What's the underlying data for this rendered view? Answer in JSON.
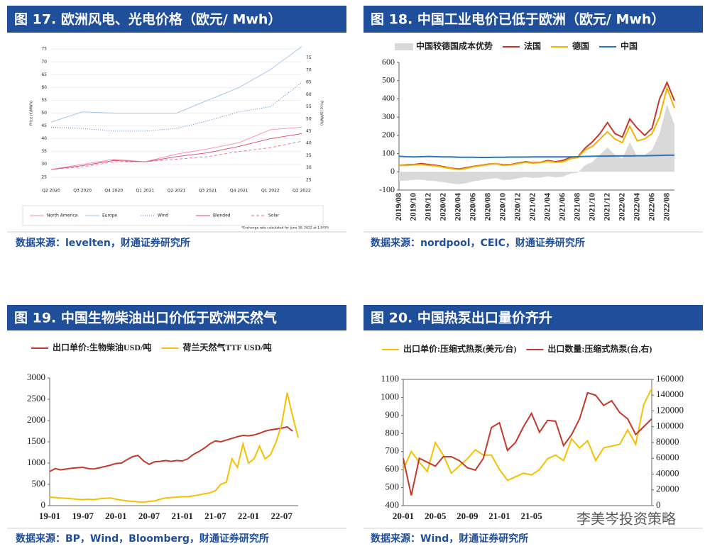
{
  "chart_data": [
    {
      "type": "line",
      "title": "图 17. 欧洲风电、光电价格（欧元/ Mwh）",
      "source": "数据来源：levelten，财通证券研究所",
      "y_label": "Price (€/MWh)",
      "y2_label": "Price ($/MWh)",
      "note": "*Exchange rate calculated for June 30, 2022 at 1.0476",
      "categories": [
        "Q2 2020",
        "Q3 2020",
        "Q4 2020",
        "Q1 2021",
        "Q2 2021",
        "Q3 2021",
        "Q4 2021",
        "Q1 2022",
        "Q2 2022"
      ],
      "ylim": [
        23,
        77
      ],
      "yticks": [
        25,
        30,
        35,
        40,
        45,
        50,
        55,
        60,
        65,
        70,
        75
      ],
      "y2lim": [
        24.1,
        80.7
      ],
      "y2ticks": [
        25,
        30,
        35,
        40,
        45,
        50,
        55,
        60,
        65,
        70,
        75
      ],
      "grid": true,
      "legend": "bottom",
      "series": [
        {
          "name": "North America",
          "color": "#ef8fb5",
          "values": [
            28,
            30,
            32,
            31,
            34,
            36,
            38.5,
            43.5,
            44.5
          ]
        },
        {
          "name": "Europe",
          "color": "#9dc3e6",
          "values": [
            46.5,
            50.5,
            50,
            50,
            50,
            55,
            60,
            67,
            76
          ]
        },
        {
          "name": "Wind",
          "color": "#4a7fc1",
          "dash": "1 2",
          "values": [
            44.5,
            44,
            43,
            43,
            44,
            47,
            50.5,
            52.5,
            62
          ]
        },
        {
          "name": "Blended",
          "color": "#d9465f",
          "values": [
            28,
            29.5,
            31.5,
            31,
            33,
            34.5,
            37,
            40,
            42
          ]
        },
        {
          "name": "Solar",
          "color": "#e0708f",
          "dash": "4 3",
          "values": [
            28,
            29,
            31,
            31,
            32,
            33,
            35,
            36.5,
            39
          ]
        }
      ]
    },
    {
      "type": "line",
      "title": "图 18. 中国工业电价已低于欧洲（欧元/ Mwh）",
      "source": "数据来源：nordpool，CEIC，财通证券研究所",
      "categories": [
        "2019/08",
        null,
        "2019/10",
        null,
        "2019/12",
        null,
        "2020/02",
        null,
        "2020/04",
        null,
        "2020/06",
        null,
        "2020/08",
        null,
        "2020/10",
        null,
        "2020/12",
        null,
        "2021/02",
        null,
        "2021/04",
        null,
        "2021/06",
        null,
        "2021/08",
        null,
        "2021/10",
        null,
        "2021/12",
        null,
        "2022/02",
        null,
        "2022/04",
        null,
        "2022/06",
        null,
        "2022/08",
        null
      ],
      "ylim": [
        -100,
        600
      ],
      "yticks": [
        -100,
        0,
        100,
        200,
        300,
        400,
        500,
        600
      ],
      "grid": false,
      "legend": "top",
      "series": [
        {
          "name": "中国较德国成本优势",
          "type": "area",
          "color": "#d9d9d9",
          "values": [
            -50,
            -48,
            -44,
            -43,
            -49,
            -51,
            -57,
            -64,
            -68,
            -62,
            -52,
            -46,
            -39,
            -35,
            -45,
            -43,
            -36,
            -29,
            -34,
            -32,
            -24,
            -30,
            -27,
            -10,
            -5,
            36,
            55,
            94,
            134,
            93,
            73,
            163,
            82,
            92,
            121,
            210,
            369,
            259
          ]
        },
        {
          "name": "法国",
          "color": "#c0392b",
          "values": [
            35,
            38,
            40,
            45,
            40,
            35,
            28,
            20,
            15,
            22,
            30,
            35,
            42,
            45,
            38,
            40,
            48,
            55,
            50,
            52,
            62,
            55,
            62,
            78,
            80,
            130,
            165,
            210,
            270,
            210,
            190,
            290,
            240,
            200,
            240,
            400,
            490,
            390
          ]
        },
        {
          "name": "德国",
          "color": "#f0b400",
          "values": [
            35,
            35,
            38,
            40,
            35,
            32,
            25,
            18,
            12,
            18,
            28,
            33,
            40,
            45,
            35,
            38,
            45,
            52,
            48,
            50,
            58,
            52,
            55,
            72,
            78,
            120,
            140,
            180,
            220,
            180,
            160,
            250,
            170,
            180,
            210,
            300,
            460,
            350
          ]
        },
        {
          "name": "中国",
          "color": "#2e75b6",
          "values": [
            85,
            83,
            82,
            83,
            84,
            83,
            82,
            82,
            80,
            80,
            80,
            79,
            79,
            80,
            80,
            81,
            81,
            81,
            82,
            82,
            82,
            82,
            82,
            82,
            83,
            84,
            85,
            86,
            86,
            87,
            87,
            87,
            88,
            88,
            89,
            90,
            91,
            91
          ]
        }
      ]
    },
    {
      "type": "line",
      "title": "图 19. 中国生物柴油出口价低于欧洲天然气",
      "source": "数据来源：BP，Wind，Bloomberg，财通证券研究所",
      "categories": [
        "19-01",
        null,
        null,
        null,
        null,
        null,
        "19-07",
        null,
        null,
        null,
        null,
        null,
        "20-01",
        null,
        null,
        null,
        null,
        null,
        "20-07",
        null,
        null,
        null,
        null,
        null,
        "21-01",
        null,
        null,
        null,
        null,
        null,
        "21-07",
        null,
        null,
        null,
        null,
        null,
        "22-01",
        null,
        null,
        null,
        null,
        null,
        "22-07",
        null,
        null,
        null
      ],
      "ylim": [
        0,
        3000
      ],
      "yticks": [
        0,
        500,
        1000,
        1500,
        2000,
        2500,
        3000
      ],
      "grid": false,
      "legend": "top",
      "series": [
        {
          "name": "出口单价:生物柴油USD/吨",
          "color": "#c0392b",
          "values": [
            800,
            870,
            840,
            860,
            880,
            890,
            900,
            870,
            860,
            890,
            920,
            950,
            990,
            1000,
            1080,
            1150,
            1180,
            1050,
            970,
            1030,
            1040,
            1060,
            1040,
            1060,
            1050,
            1100,
            1200,
            1270,
            1350,
            1450,
            1520,
            1500,
            1540,
            1580,
            1620,
            1650,
            1640,
            1660,
            1700,
            1750,
            1780,
            1800,
            1820,
            1850,
            1750,
            null
          ]
        },
        {
          "name": "荷兰天然气TTF USD/吨",
          "color": "#f5c000",
          "values": [
            200,
            190,
            180,
            170,
            160,
            150,
            140,
            150,
            140,
            160,
            170,
            180,
            150,
            130,
            110,
            100,
            90,
            80,
            100,
            110,
            150,
            180,
            190,
            200,
            210,
            210,
            230,
            250,
            280,
            300,
            350,
            500,
            550,
            1100,
            900,
            1450,
            1000,
            1100,
            1400,
            1100,
            1200,
            1500,
            1900,
            2650,
            2100,
            1600
          ]
        }
      ]
    },
    {
      "type": "line",
      "title": "图 20. 中国热泵出口量价齐升",
      "source": "数据来源：Wind，财通证券研究所",
      "categories": [
        "20-01",
        null,
        null,
        null,
        "20-05",
        null,
        null,
        null,
        "20-09",
        null,
        null,
        null,
        "21-01",
        null,
        null,
        null,
        "21-05",
        null,
        null,
        null,
        null,
        null,
        null,
        null,
        null,
        null,
        null,
        null,
        null,
        null,
        null,
        null
      ],
      "ylim": [
        400,
        1100
      ],
      "yticks": [
        400,
        500,
        600,
        700,
        800,
        900,
        1000,
        1100
      ],
      "y2lim": [
        0,
        160000
      ],
      "y2ticks": [
        0,
        20000,
        40000,
        60000,
        80000,
        100000,
        120000,
        140000,
        160000
      ],
      "grid": false,
      "legend": "top",
      "series": [
        {
          "name": "出口单价:压缩式热泵(美元/台)",
          "color": "#f5c000",
          "values": [
            600,
            700,
            640,
            590,
            750,
            680,
            580,
            620,
            660,
            710,
            680,
            680,
            600,
            540,
            560,
            580,
            570,
            600,
            660,
            680,
            650,
            770,
            720,
            760,
            650,
            720,
            730,
            740,
            820,
            740,
            960,
            1050
          ]
        },
        {
          "name": "出口数量:压缩式热泵(台,右)",
          "color": "#c0392b",
          "axis": "y2",
          "values": [
            60000,
            13000,
            60000,
            55000,
            50000,
            62000,
            62000,
            57000,
            48000,
            45000,
            60000,
            99000,
            105000,
            70000,
            80000,
            100000,
            117000,
            93000,
            108000,
            107000,
            76000,
            90000,
            110000,
            143000,
            140000,
            127000,
            133000,
            118000,
            110000,
            90000,
            100000,
            110000
          ]
        }
      ]
    }
  ],
  "watermark": "李美岑投资策略"
}
